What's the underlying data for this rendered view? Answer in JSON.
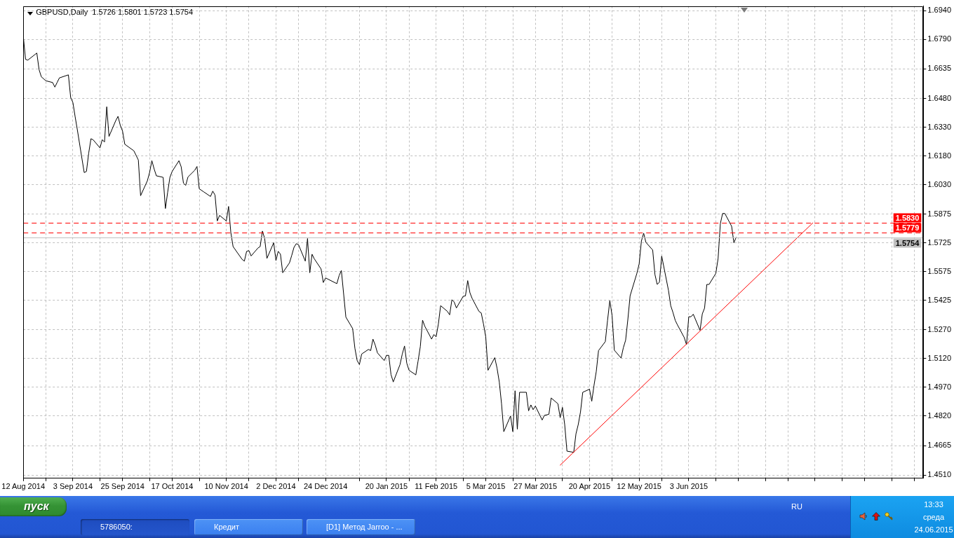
{
  "chart_data": {
    "type": "line",
    "title": "GBPUSD,Daily  1.5726 1.5801 1.5723 1.5754",
    "series": [
      {
        "color": "#000000",
        "x": [
          "2014-08-12",
          "2014-08-13",
          "2014-08-14",
          "2014-08-18",
          "2014-08-19",
          "2014-08-20",
          "2014-08-22",
          "2014-08-25",
          "2014-08-26",
          "2014-08-27",
          "2014-08-28",
          "2014-09-01",
          "2014-09-02",
          "2014-09-03",
          "2014-09-04",
          "2014-09-05",
          "2014-09-08",
          "2014-09-09",
          "2014-09-10",
          "2014-09-11",
          "2014-09-12",
          "2014-09-15",
          "2014-09-16",
          "2014-09-17",
          "2014-09-18",
          "2014-09-19",
          "2014-09-22",
          "2014-09-23",
          "2014-09-24",
          "2014-09-25",
          "2014-09-26",
          "2014-09-30",
          "2014-10-02",
          "2014-10-03",
          "2014-10-06",
          "2014-10-07",
          "2014-10-08",
          "2014-10-09",
          "2014-10-10",
          "2014-10-13",
          "2014-10-14",
          "2014-10-15",
          "2014-10-16",
          "2014-10-17",
          "2014-10-20",
          "2014-10-21",
          "2014-10-22",
          "2014-10-23",
          "2014-10-24",
          "2014-10-27",
          "2014-10-28",
          "2014-10-29",
          "2014-10-31",
          "2014-11-03",
          "2014-11-04",
          "2014-11-05",
          "2014-11-06",
          "2014-11-07",
          "2014-11-10",
          "2014-11-11",
          "2014-11-12",
          "2014-11-13",
          "2014-11-17",
          "2014-11-18",
          "2014-11-19",
          "2014-11-20",
          "2014-11-21",
          "2014-11-24",
          "2014-11-25",
          "2014-11-26",
          "2014-11-27",
          "2014-11-28",
          "2014-12-01",
          "2014-12-02",
          "2014-12-03",
          "2014-12-04",
          "2014-12-05",
          "2014-12-08",
          "2014-12-09",
          "2014-12-10",
          "2014-12-11",
          "2014-12-12",
          "2014-12-15",
          "2014-12-16",
          "2014-12-17",
          "2014-12-18",
          "2014-12-19",
          "2014-12-22",
          "2014-12-23",
          "2014-12-24",
          "2014-12-29",
          "2014-12-30",
          "2014-12-31",
          "2015-01-02",
          "2015-01-05",
          "2015-01-06",
          "2015-01-07",
          "2015-01-08",
          "2015-01-09",
          "2015-01-12",
          "2015-01-13",
          "2015-01-14",
          "2015-01-15",
          "2015-01-16",
          "2015-01-19",
          "2015-01-20",
          "2015-01-21",
          "2015-01-22",
          "2015-01-23",
          "2015-01-26",
          "2015-01-27",
          "2015-01-28",
          "2015-01-29",
          "2015-01-30",
          "2015-02-02",
          "2015-02-03",
          "2015-02-04",
          "2015-02-05",
          "2015-02-06",
          "2015-02-09",
          "2015-02-10",
          "2015-02-11",
          "2015-02-12",
          "2015-02-13",
          "2015-02-16",
          "2015-02-17",
          "2015-02-18",
          "2015-02-19",
          "2015-02-20",
          "2015-02-23",
          "2015-02-24",
          "2015-02-25",
          "2015-02-26",
          "2015-02-27",
          "2015-03-02",
          "2015-03-03",
          "2015-03-04",
          "2015-03-05",
          "2015-03-06",
          "2015-03-09",
          "2015-03-10",
          "2015-03-11",
          "2015-03-12",
          "2015-03-13",
          "2015-03-16",
          "2015-03-17",
          "2015-03-18",
          "2015-03-19",
          "2015-03-20",
          "2015-03-23",
          "2015-03-24",
          "2015-03-25",
          "2015-03-26",
          "2015-03-27",
          "2015-03-30",
          "2015-03-31",
          "2015-04-02",
          "2015-04-03",
          "2015-04-06",
          "2015-04-07",
          "2015-04-08",
          "2015-04-09",
          "2015-04-10",
          "2015-04-13",
          "2015-04-14",
          "2015-04-15",
          "2015-04-16",
          "2015-04-17",
          "2015-04-20",
          "2015-04-21",
          "2015-04-22",
          "2015-04-23",
          "2015-04-24",
          "2015-04-27",
          "2015-04-28",
          "2015-04-29",
          "2015-04-30",
          "2015-05-01",
          "2015-05-04",
          "2015-05-05",
          "2015-05-06",
          "2015-05-07",
          "2015-05-08",
          "2015-05-11",
          "2015-05-12",
          "2015-05-13",
          "2015-05-14",
          "2015-05-15",
          "2015-05-18",
          "2015-05-19",
          "2015-05-20",
          "2015-05-21",
          "2015-05-22",
          "2015-05-25",
          "2015-05-26",
          "2015-05-27",
          "2015-05-28",
          "2015-05-29",
          "2015-06-01",
          "2015-06-02",
          "2015-06-03",
          "2015-06-04",
          "2015-06-05",
          "2015-06-08",
          "2015-06-09",
          "2015-06-10",
          "2015-06-11",
          "2015-06-12",
          "2015-06-15",
          "2015-06-16",
          "2015-06-17",
          "2015-06-18",
          "2015-06-19",
          "2015-06-22",
          "2015-06-23",
          "2015-06-24"
        ],
        "values": [
          1.6806,
          1.6685,
          1.6681,
          1.6718,
          1.6631,
          1.6594,
          1.6573,
          1.6564,
          1.654,
          1.6564,
          1.6588,
          1.6604,
          1.6486,
          1.6459,
          1.6384,
          1.6314,
          1.6093,
          1.6099,
          1.6195,
          1.627,
          1.6264,
          1.6222,
          1.6265,
          1.6253,
          1.6437,
          1.6282,
          1.6365,
          1.6387,
          1.634,
          1.631,
          1.6241,
          1.6207,
          1.6159,
          1.5972,
          1.605,
          1.6094,
          1.6155,
          1.6112,
          1.6076,
          1.6068,
          1.5905,
          1.599,
          1.6068,
          1.6099,
          1.6155,
          1.6123,
          1.6038,
          1.6026,
          1.607,
          1.6105,
          1.6125,
          1.6008,
          1.5992,
          1.5968,
          1.5996,
          1.5975,
          1.584,
          1.5869,
          1.584,
          1.5916,
          1.578,
          1.5706,
          1.5639,
          1.563,
          1.5681,
          1.5685,
          1.5657,
          1.5698,
          1.5706,
          1.5787,
          1.5748,
          1.5644,
          1.5726,
          1.5633,
          1.5681,
          1.5666,
          1.5569,
          1.5621,
          1.566,
          1.5702,
          1.5721,
          1.5716,
          1.563,
          1.5748,
          1.5569,
          1.5666,
          1.5642,
          1.5589,
          1.5518,
          1.5542,
          1.5512,
          1.5554,
          1.5581,
          1.5337,
          1.5277,
          1.5174,
          1.511,
          1.5089,
          1.5144,
          1.5168,
          1.5162,
          1.5222,
          1.5191,
          1.515,
          1.511,
          1.5137,
          1.5137,
          1.5037,
          1.4998,
          1.5089,
          1.5144,
          1.5186,
          1.5096,
          1.5059,
          1.5035,
          1.5107,
          1.5183,
          1.5321,
          1.5289,
          1.5222,
          1.5246,
          1.5234,
          1.5301,
          1.5397,
          1.5367,
          1.5349,
          1.5428,
          1.5416,
          1.5385,
          1.5446,
          1.5448,
          1.5528,
          1.5464,
          1.5434,
          1.5367,
          1.5359,
          1.5301,
          1.5234,
          1.5059,
          1.5125,
          1.5071,
          1.4998,
          1.4884,
          1.4738,
          1.482,
          1.4738,
          1.4952,
          1.4751,
          1.4944,
          1.4944,
          1.4847,
          1.4878,
          1.4853,
          1.4872,
          1.4799,
          1.4823,
          1.4829,
          1.4914,
          1.4884,
          1.4811,
          1.4865,
          1.4775,
          1.4636,
          1.463,
          1.4727,
          1.4775,
          1.4841,
          1.4944,
          1.496,
          1.4897,
          1.498,
          1.5053,
          1.5162,
          1.5209,
          1.532,
          1.5423,
          1.5346,
          1.5164,
          1.5123,
          1.5177,
          1.5216,
          1.5325,
          1.5449,
          1.5566,
          1.5615,
          1.5735,
          1.5776,
          1.5728,
          1.5688,
          1.556,
          1.5508,
          1.552,
          1.5656,
          1.5477,
          1.5397,
          1.5361,
          1.532,
          1.5296,
          1.523,
          1.5193,
          1.5339,
          1.5339,
          1.5352,
          1.5268,
          1.5354,
          1.5384,
          1.5508,
          1.5508,
          1.5566,
          1.5644,
          1.5826,
          1.5879,
          1.5879,
          1.5812,
          1.5726,
          1.5754
        ]
      },
      {
        "color": "#ff0000",
        "x": [
          "2015-04-07",
          "2015-07-28"
        ],
        "values": [
          1.4563,
          1.583
        ]
      }
    ],
    "xlim": [
      "2014-08-12",
      "2015-09-15"
    ],
    "xticks": [
      {
        "value": "2014-08-12",
        "label": "12 Aug 2014"
      },
      {
        "value": "2014-08-22",
        "label": null
      },
      {
        "value": "2014-09-03",
        "label": "3 Sep 2014"
      },
      {
        "value": "2014-09-15",
        "label": null
      },
      {
        "value": "2014-09-25",
        "label": "25 Sep 2014"
      },
      {
        "value": "2014-10-07",
        "label": null
      },
      {
        "value": "2014-10-17",
        "label": "17 Oct 2014"
      },
      {
        "value": "2014-10-29",
        "label": null
      },
      {
        "value": "2014-11-10",
        "label": "10 Nov 2014"
      },
      {
        "value": "2014-11-20",
        "label": null
      },
      {
        "value": "2014-12-02",
        "label": "2 Dec 2014"
      },
      {
        "value": "2014-12-12",
        "label": null
      },
      {
        "value": "2014-12-24",
        "label": "24 Dec 2014"
      },
      {
        "value": "2015-01-08",
        "label": null
      },
      {
        "value": "2015-01-20",
        "label": "20 Jan 2015"
      },
      {
        "value": "2015-01-30",
        "label": null
      },
      {
        "value": "2015-02-11",
        "label": "11 Feb 2015"
      },
      {
        "value": "2015-02-23",
        "label": null
      },
      {
        "value": "2015-03-05",
        "label": "5 Mar 2015"
      },
      {
        "value": "2015-03-17",
        "label": null
      },
      {
        "value": "2015-03-27",
        "label": "27 Mar 2015"
      },
      {
        "value": "2015-04-08",
        "label": null
      },
      {
        "value": "2015-04-20",
        "label": "20 Apr 2015"
      },
      {
        "value": "2015-04-30",
        "label": null
      },
      {
        "value": "2015-05-12",
        "label": "12 May 2015"
      },
      {
        "value": "2015-05-22",
        "label": null
      },
      {
        "value": "2015-06-03",
        "label": "3 Jun 2015"
      },
      {
        "value": "2015-06-15",
        "label": null
      },
      {
        "value": "2015-06-25",
        "label": null
      },
      {
        "value": "2015-07-07",
        "label": null
      },
      {
        "value": "2015-07-17",
        "label": null
      },
      {
        "value": "2015-07-29",
        "label": null
      },
      {
        "value": "2015-08-10",
        "label": null
      },
      {
        "value": "2015-08-20",
        "label": null
      },
      {
        "value": "2015-09-01",
        "label": null
      },
      {
        "value": "2015-09-11",
        "label": null
      }
    ],
    "ylim": [
      1.4494,
      1.6964
    ],
    "yticks": [
      {
        "value": 1.694,
        "label": "1.6940"
      },
      {
        "value": 1.679,
        "label": "1.6790"
      },
      {
        "value": 1.6635,
        "label": "1.6635"
      },
      {
        "value": 1.648,
        "label": "1.6480"
      },
      {
        "value": 1.633,
        "label": "1.6330"
      },
      {
        "value": 1.618,
        "label": "1.6180"
      },
      {
        "value": 1.603,
        "label": "1.6030"
      },
      {
        "value": 1.5875,
        "label": "1.5875"
      },
      {
        "value": 1.5725,
        "label": "1.5725"
      },
      {
        "value": 1.5575,
        "label": "1.5575"
      },
      {
        "value": 1.5425,
        "label": "1.5425"
      },
      {
        "value": 1.527,
        "label": "1.5270"
      },
      {
        "value": 1.512,
        "label": "1.5120"
      },
      {
        "value": 1.497,
        "label": "1.4970"
      },
      {
        "value": 1.482,
        "label": "1.4820"
      },
      {
        "value": 1.4665,
        "label": "1.4665"
      },
      {
        "value": 1.451,
        "label": "1.4510"
      }
    ],
    "ref_lines": [
      {
        "axis": "y",
        "value": 1.583,
        "label": "1.5830",
        "color": "#ff0000",
        "line_style": "dashed"
      },
      {
        "axis": "y",
        "value": 1.5779,
        "label": "1.5779",
        "color": "#ff0000",
        "line_style": "dashed"
      },
      {
        "axis": "y",
        "value": 1.5754,
        "label": "1.5754",
        "color": "#c0c0c0",
        "line_style": "solid"
      }
    ],
    "grid": true,
    "annotations": [
      "пуск",
      "5786050:",
      "Кредит",
      "[D1] Метод Jarroo - ...",
      "RU",
      "13:33",
      "среда",
      "24.06.2015"
    ]
  }
}
